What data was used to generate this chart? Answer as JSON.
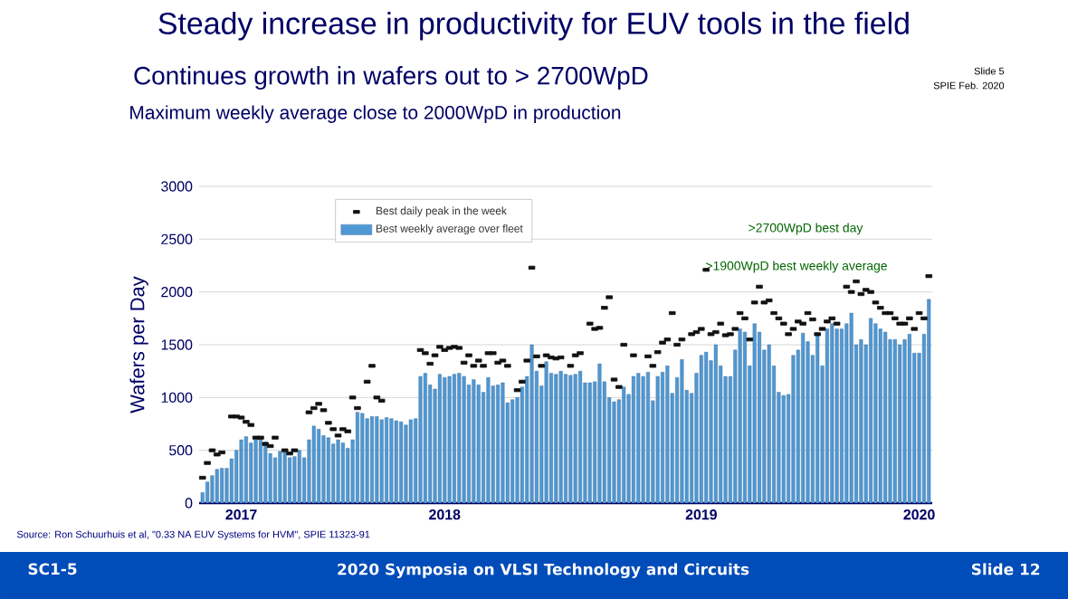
{
  "chart_data": {
    "type": "bar",
    "title": "Steady increase in productivity for EUV tools in the field",
    "subtitle": "Continues growth in wafers out to > 2700WpD",
    "ylabel": "Wafers per Day",
    "categories": [
      null,
      null,
      null,
      null,
      null,
      null,
      null,
      null,
      "2017",
      null,
      null,
      null,
      null,
      null,
      null,
      null,
      null,
      null,
      null,
      null,
      null,
      null,
      null,
      null,
      null,
      null,
      null,
      null,
      null,
      null,
      null,
      null,
      null,
      null,
      null,
      null,
      null,
      null,
      null,
      null,
      null,
      null,
      null,
      null,
      null,
      null,
      null,
      null,
      null,
      null,
      "2018",
      null,
      null,
      null,
      null,
      null,
      null,
      null,
      null,
      null,
      null,
      null,
      null,
      null,
      null,
      null,
      null,
      null,
      null,
      null,
      null,
      null,
      null,
      null,
      null,
      null,
      null,
      null,
      null,
      null,
      null,
      null,
      null,
      null,
      null,
      null,
      null,
      null,
      null,
      null,
      null,
      null,
      null,
      null,
      null,
      null,
      null,
      null,
      null,
      null,
      null,
      null,
      null,
      "2019",
      null,
      null,
      null,
      null,
      null,
      null,
      null,
      null,
      null,
      null,
      null,
      null,
      null,
      null,
      null,
      null,
      null,
      null,
      null,
      null,
      null,
      null,
      null,
      null,
      null,
      null,
      null,
      null,
      null,
      null,
      null,
      null,
      null,
      null,
      null,
      null,
      null,
      null,
      null,
      null,
      null,
      null,
      null,
      null,
      "2020",
      null,
      null
    ],
    "series": [
      {
        "name": "Best daily peak in the week",
        "type": "scatter",
        "color": "#111111",
        "values": [
          240,
          380,
          500,
          460,
          480,
          null,
          820,
          820,
          810,
          770,
          740,
          620,
          620,
          560,
          540,
          620,
          null,
          500,
          470,
          500,
          null,
          null,
          860,
          900,
          940,
          880,
          760,
          700,
          640,
          700,
          680,
          1000,
          900,
          null,
          1150,
          1300,
          1000,
          970,
          null,
          null,
          null,
          null,
          null,
          null,
          null,
          1450,
          1420,
          1320,
          1400,
          1480,
          1450,
          1470,
          1480,
          1470,
          1330,
          1400,
          1300,
          1350,
          1300,
          1420,
          1420,
          1330,
          1350,
          1300,
          null,
          1070,
          1150,
          1350,
          2230,
          1390,
          1300,
          1400,
          1380,
          1370,
          1380,
          null,
          1300,
          1400,
          1420,
          null,
          1700,
          1650,
          1660,
          1850,
          1950,
          1170,
          1100,
          1500,
          null,
          1400,
          null,
          null,
          1390,
          1300,
          1430,
          1520,
          1550,
          1800,
          1500,
          1550,
          null,
          1600,
          1620,
          1650,
          2210,
          1600,
          1620,
          1700,
          1590,
          1600,
          1650,
          1800,
          1750,
          1550,
          1900,
          2050,
          1900,
          1920,
          1800,
          1750,
          1700,
          1600,
          1650,
          1720,
          1700,
          1800,
          1740,
          1600,
          1650,
          1720,
          1750,
          1700,
          null,
          2050,
          2000,
          2100,
          1980,
          2020,
          2000,
          1900,
          1850,
          1800,
          1800,
          1750,
          1700,
          1700,
          1750,
          1650,
          1800,
          1750,
          2150
        ]
      },
      {
        "name": "Best weekly average over fleet",
        "color": "#4f98d4",
        "values": [
          100,
          200,
          260,
          320,
          330,
          330,
          420,
          500,
          600,
          630,
          570,
          600,
          620,
          580,
          470,
          430,
          490,
          480,
          430,
          440,
          500,
          430,
          600,
          730,
          700,
          640,
          620,
          560,
          600,
          570,
          520,
          600,
          860,
          850,
          800,
          820,
          820,
          790,
          810,
          800,
          780,
          770,
          740,
          790,
          800,
          1200,
          1230,
          1120,
          1080,
          1220,
          1190,
          1200,
          1220,
          1230,
          1200,
          1120,
          1170,
          1120,
          1050,
          1190,
          1110,
          1120,
          1140,
          950,
          980,
          1000,
          1100,
          1200,
          1500,
          1250,
          1110,
          1340,
          1230,
          1220,
          1250,
          1220,
          1210,
          1220,
          1250,
          1140,
          1140,
          1150,
          1320,
          1150,
          1000,
          960,
          980,
          1100,
          1030,
          1200,
          1230,
          1200,
          1240,
          970,
          1200,
          1240,
          1300,
          1040,
          1190,
          1360,
          1070,
          1040,
          1230,
          1400,
          1430,
          1350,
          1500,
          1300,
          1200,
          1200,
          1450,
          1650,
          1620,
          1300,
          1700,
          1620,
          1450,
          1500,
          1300,
          1050,
          1020,
          1030,
          1400,
          1450,
          1610,
          1530,
          1400,
          1600,
          1300,
          1650,
          1700,
          1650,
          1650,
          1700,
          1800,
          1500,
          1550,
          1500,
          1750,
          1700,
          1650,
          1620,
          1550,
          1550,
          1500,
          1550,
          1600,
          1420,
          1420,
          1600,
          1930
        ]
      }
    ],
    "ylim": [
      0,
      3000
    ],
    "yticks": [
      0,
      500,
      1000,
      1500,
      2000,
      2500,
      3000
    ],
    "grid": "y",
    "legend": "top",
    "annotations": [
      "Maximum weekly average close to 2000WpD in production",
      ">2700WpD best day",
      ">1900WpD best weekly average",
      "Slide 5",
      "SPIE Feb. 2020",
      "Source:  Ron Schuurhuis et al, \"0.33 NA EUV Systems for HVM\", SPIE 11323-91",
      "SC1-5",
      "2020 Symposia on VLSI Technology and Circuits",
      "Slide 12"
    ]
  }
}
